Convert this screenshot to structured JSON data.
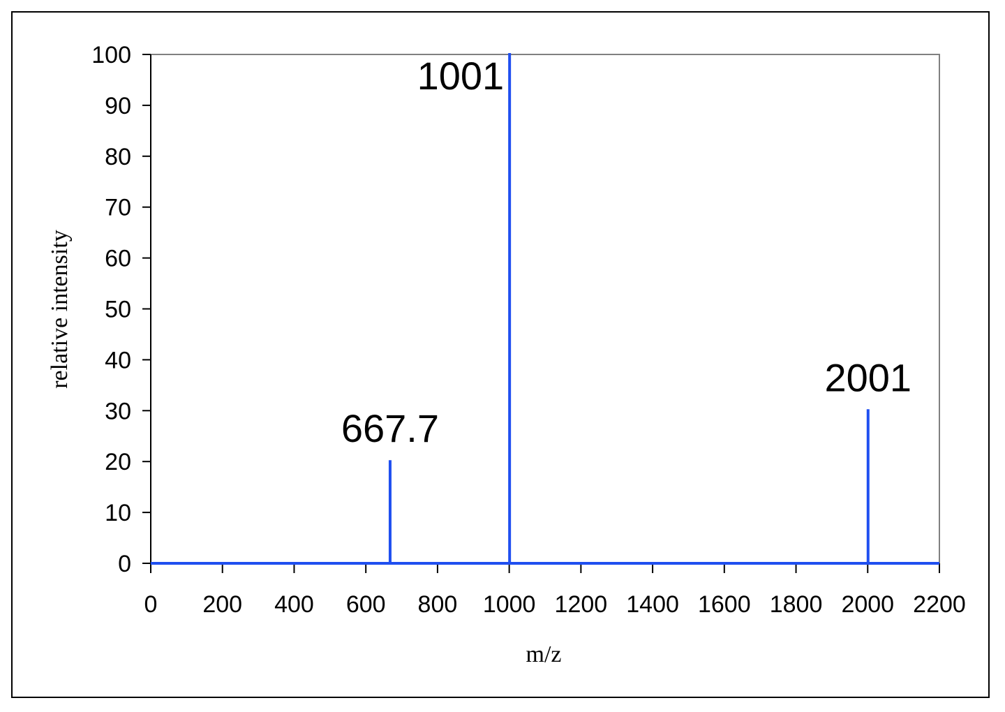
{
  "chart_data": {
    "type": "bar",
    "title": "",
    "xlabel": "m/z",
    "ylabel": "relative intensity",
    "xlim": [
      0,
      2200
    ],
    "ylim": [
      0,
      100
    ],
    "x_ticks": [
      "0",
      "200",
      "400",
      "600",
      "800",
      "1000",
      "1200",
      "1400",
      "1600",
      "1800",
      "2000",
      "2200"
    ],
    "y_ticks": [
      "0",
      "10",
      "20",
      "30",
      "40",
      "50",
      "60",
      "70",
      "80",
      "90",
      "100"
    ],
    "peaks": [
      {
        "x": 667.7,
        "y": 20,
        "label": "667.7"
      },
      {
        "x": 1001,
        "y": 100,
        "label": "1001"
      },
      {
        "x": 2001,
        "y": 30,
        "label": "2001"
      }
    ],
    "grid": false,
    "legend": "none",
    "colors": {
      "series": "#1f4ff0",
      "plot_border": "#808080",
      "axis": "#000000"
    }
  }
}
